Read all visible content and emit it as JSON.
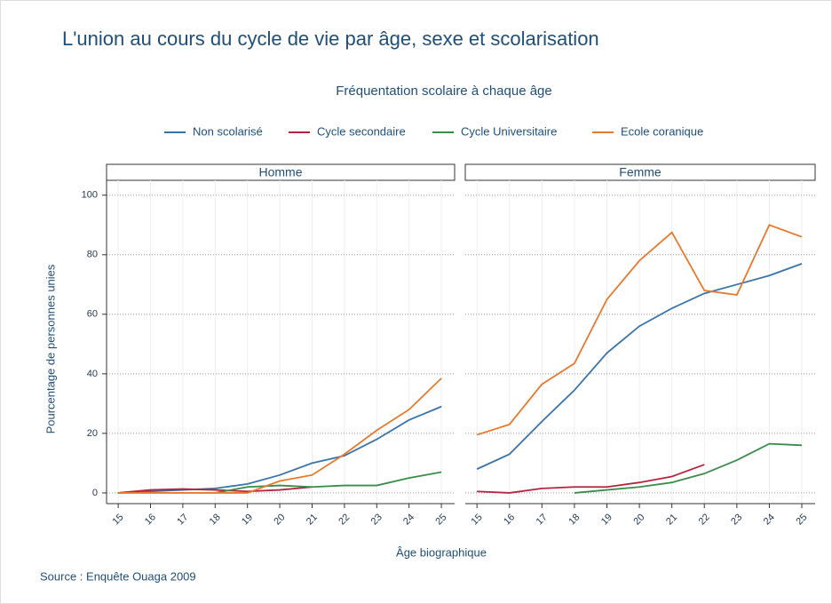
{
  "title": "L'union au cours du cycle de vie par âge, sexe et scolarisation",
  "subtitle": "Fréquentation scolaire à chaque âge",
  "x_label": "Âge biographique",
  "y_label": "Pourcentage de personnes unies",
  "source": "Source : Enquête Ouaga 2009",
  "chart_data": [
    {
      "type": "line",
      "title": "Homme",
      "x": [
        15,
        16,
        17,
        18,
        19,
        20,
        21,
        22,
        23,
        24,
        25
      ],
      "xlim": [
        14.64,
        25.41
      ],
      "xticks": [
        15,
        16,
        17,
        18,
        19,
        20,
        21,
        22,
        23,
        24,
        25
      ],
      "ylim": [
        -3.6,
        105
      ],
      "yticks": [
        0,
        20,
        40,
        60,
        80,
        100
      ],
      "grid": true,
      "series": [
        {
          "name": "Non scolarisé",
          "color": "#3a73a9",
          "values": [
            0,
            0.5,
            1,
            1.5,
            3,
            6,
            10,
            12.5,
            18,
            24.5,
            29
          ]
        },
        {
          "name": "Cycle secondaire",
          "color": "#b5243f",
          "values": [
            0,
            1,
            1.3,
            1,
            0.5,
            1,
            2,
            null,
            null,
            null,
            null
          ]
        },
        {
          "name": "Cycle Universitaire",
          "color": "#3b8c4a",
          "values": [
            null,
            null,
            null,
            0,
            2,
            2.5,
            2,
            2.5,
            2.5,
            5,
            7
          ]
        },
        {
          "name": "Ecole coranique",
          "color": "#e8782b",
          "values": [
            0,
            0,
            0,
            0,
            0,
            4,
            6,
            13,
            21,
            28,
            38.5
          ]
        }
      ]
    },
    {
      "type": "line",
      "title": "Femme",
      "x": [
        15,
        16,
        17,
        18,
        19,
        20,
        21,
        22,
        23,
        24,
        25
      ],
      "xlim": [
        14.64,
        25.41
      ],
      "xticks": [
        15,
        16,
        17,
        18,
        19,
        20,
        21,
        22,
        23,
        24,
        25
      ],
      "ylim": [
        -3.6,
        105
      ],
      "yticks": [
        0,
        20,
        40,
        60,
        80,
        100
      ],
      "grid": true,
      "series": [
        {
          "name": "Non scolarisé",
          "color": "#3a73a9",
          "values": [
            8,
            13,
            24,
            34.5,
            47,
            56,
            62,
            67,
            70,
            73,
            77
          ]
        },
        {
          "name": "Cycle secondaire",
          "color": "#b5243f",
          "values": [
            0.5,
            0,
            1.5,
            2,
            2,
            3.5,
            5.5,
            9.5,
            null,
            null,
            null
          ]
        },
        {
          "name": "Cycle Universitaire",
          "color": "#3b8c4a",
          "values": [
            null,
            null,
            null,
            0,
            1,
            2,
            3.5,
            6.5,
            11,
            16.5,
            16
          ]
        },
        {
          "name": "Ecole coranique",
          "color": "#e8782b",
          "values": [
            19.5,
            23,
            36.5,
            43.5,
            65,
            78,
            87.5,
            68,
            66.5,
            90,
            86
          ]
        }
      ]
    }
  ]
}
